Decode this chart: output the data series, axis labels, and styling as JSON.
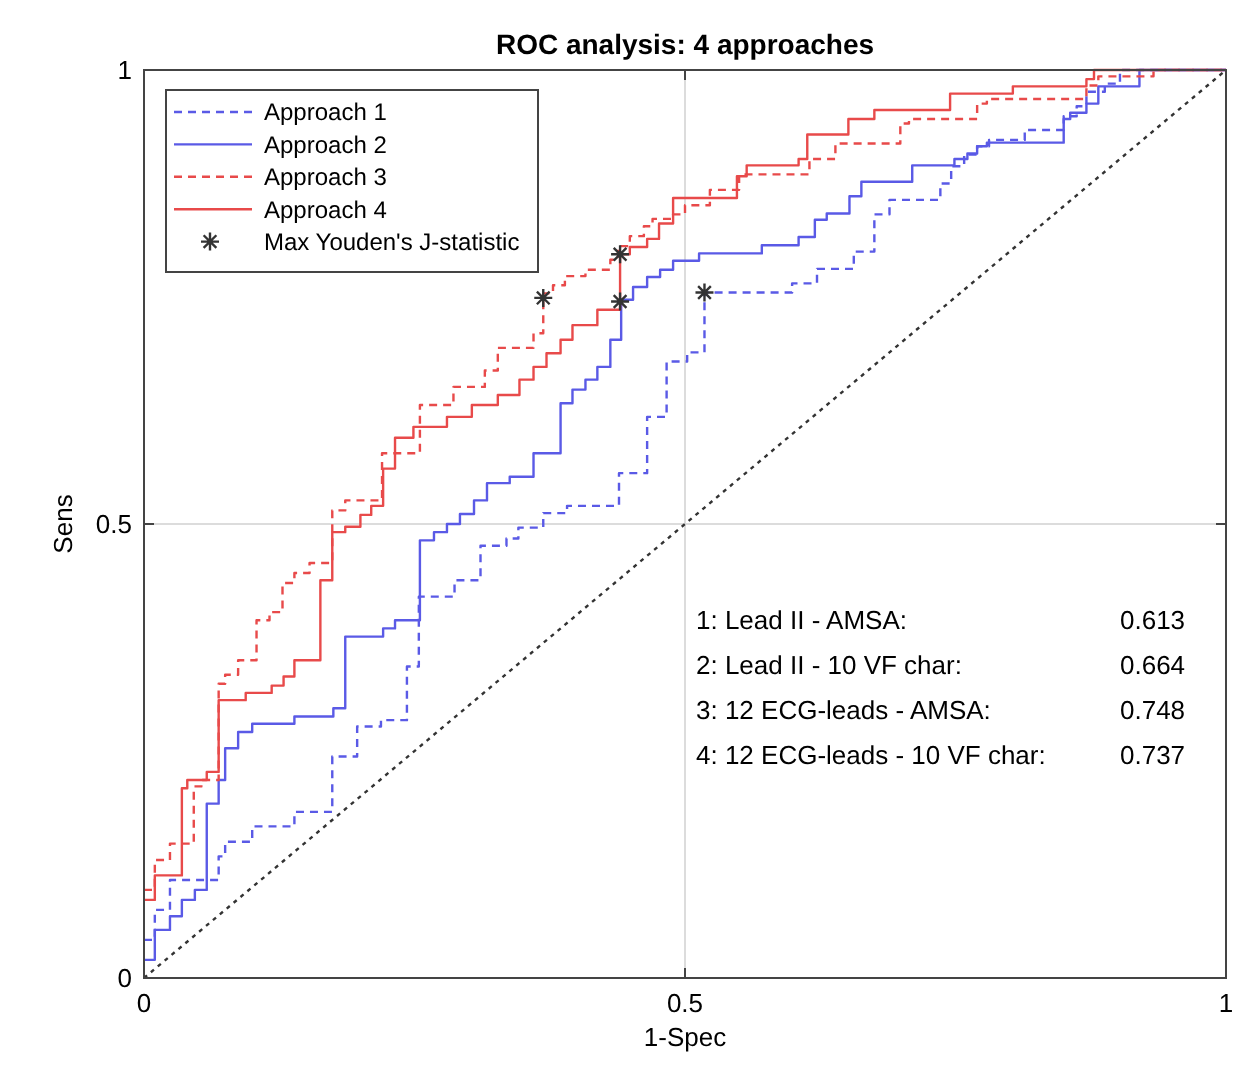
{
  "chart_data": {
    "type": "step",
    "title": "ROC analysis: 4 approaches",
    "xlabel": "1-Spec",
    "ylabel": "Sens",
    "xlim": [
      0,
      1
    ],
    "ylim": [
      0,
      1
    ],
    "xticks": [
      0,
      0.5,
      1
    ],
    "yticks": [
      0,
      0.5,
      1
    ],
    "grid": true,
    "legend": "top left",
    "series": [
      {
        "name": "Approach 1",
        "color": "#5a5ae6",
        "line_style": "dashed",
        "x": [
          0,
          0.01,
          0.024,
          0.069,
          0.075,
          0.1,
          0.139,
          0.174,
          0.197,
          0.219,
          0.243,
          0.254,
          0.287,
          0.311,
          0.335,
          0.346,
          0.369,
          0.391,
          0.439,
          0.465,
          0.483,
          0.502,
          0.518,
          0.599,
          0.622,
          0.656,
          0.675,
          0.689,
          0.736,
          0.746,
          0.758,
          0.77,
          0.781,
          0.814,
          0.85,
          0.862,
          0.871,
          0.888,
          0.902,
          1
        ],
        "values": [
          0.042,
          0.075,
          0.108,
          0.134,
          0.15,
          0.167,
          0.183,
          0.244,
          0.277,
          0.284,
          0.343,
          0.42,
          0.438,
          0.476,
          0.484,
          0.496,
          0.512,
          0.52,
          0.556,
          0.618,
          0.679,
          0.689,
          0.755,
          0.765,
          0.781,
          0.8,
          0.841,
          0.857,
          0.875,
          0.894,
          0.907,
          0.916,
          0.923,
          0.934,
          0.949,
          0.96,
          0.976,
          0.985,
          1,
          1
        ]
      },
      {
        "name": "Approach 2",
        "color": "#5a5ae6",
        "line_style": "solid",
        "x": [
          0,
          0.01,
          0.024,
          0.035,
          0.047,
          0.058,
          0.069,
          0.075,
          0.087,
          0.1,
          0.139,
          0.175,
          0.186,
          0.221,
          0.232,
          0.255,
          0.268,
          0.28,
          0.292,
          0.305,
          0.317,
          0.338,
          0.36,
          0.385,
          0.396,
          0.408,
          0.419,
          0.431,
          0.441,
          0.452,
          0.465,
          0.477,
          0.489,
          0.513,
          0.571,
          0.605,
          0.62,
          0.631,
          0.652,
          0.663,
          0.71,
          0.749,
          0.761,
          0.77,
          0.779,
          0.85,
          0.856,
          0.871,
          0.882,
          0.92,
          1
        ],
        "values": [
          0.02,
          0.053,
          0.068,
          0.086,
          0.097,
          0.192,
          0.218,
          0.253,
          0.271,
          0.28,
          0.288,
          0.297,
          0.376,
          0.385,
          0.394,
          0.482,
          0.491,
          0.5,
          0.511,
          0.526,
          0.545,
          0.552,
          0.578,
          0.633,
          0.648,
          0.659,
          0.673,
          0.703,
          0.747,
          0.761,
          0.772,
          0.78,
          0.79,
          0.798,
          0.807,
          0.816,
          0.835,
          0.842,
          0.861,
          0.877,
          0.895,
          0.902,
          0.908,
          0.916,
          0.92,
          0.946,
          0.953,
          0.963,
          0.982,
          1,
          1
        ]
      },
      {
        "name": "Approach 3",
        "color": "#e84a4a",
        "line_style": "dashed",
        "x": [
          0,
          0.01,
          0.024,
          0.046,
          0.053,
          0.069,
          0.075,
          0.087,
          0.104,
          0.116,
          0.128,
          0.139,
          0.153,
          0.174,
          0.186,
          0.22,
          0.255,
          0.286,
          0.315,
          0.327,
          0.36,
          0.369,
          0.378,
          0.389,
          0.408,
          0.431,
          0.438,
          0.449,
          0.462,
          0.47,
          0.489,
          0.5,
          0.523,
          0.55,
          0.615,
          0.639,
          0.699,
          0.707,
          0.77,
          0.779,
          0.871,
          0.882,
          0.933,
          1
        ],
        "values": [
          0.097,
          0.13,
          0.148,
          0.211,
          0.218,
          0.324,
          0.334,
          0.35,
          0.394,
          0.403,
          0.435,
          0.446,
          0.457,
          0.515,
          0.526,
          0.578,
          0.631,
          0.651,
          0.669,
          0.694,
          0.71,
          0.754,
          0.763,
          0.773,
          0.78,
          0.791,
          0.806,
          0.817,
          0.828,
          0.836,
          0.841,
          0.851,
          0.868,
          0.885,
          0.902,
          0.919,
          0.941,
          0.946,
          0.963,
          0.968,
          0.983,
          0.993,
          1,
          1
        ]
      },
      {
        "name": "Approach 4",
        "color": "#e84a4a",
        "line_style": "solid",
        "x": [
          0,
          0.01,
          0.035,
          0.04,
          0.058,
          0.069,
          0.094,
          0.118,
          0.129,
          0.139,
          0.163,
          0.174,
          0.186,
          0.2,
          0.21,
          0.221,
          0.232,
          0.249,
          0.28,
          0.303,
          0.327,
          0.347,
          0.36,
          0.372,
          0.385,
          0.396,
          0.419,
          0.44,
          0.449,
          0.465,
          0.476,
          0.489,
          0.548,
          0.557,
          0.605,
          0.613,
          0.651,
          0.675,
          0.745,
          0.803,
          0.871,
          0.878,
          1
        ],
        "values": [
          0.086,
          0.113,
          0.209,
          0.218,
          0.227,
          0.306,
          0.314,
          0.322,
          0.332,
          0.35,
          0.438,
          0.491,
          0.497,
          0.51,
          0.52,
          0.561,
          0.595,
          0.607,
          0.618,
          0.631,
          0.642,
          0.659,
          0.673,
          0.688,
          0.703,
          0.719,
          0.736,
          0.797,
          0.805,
          0.814,
          0.831,
          0.859,
          0.883,
          0.895,
          0.902,
          0.929,
          0.946,
          0.956,
          0.974,
          0.982,
          0.99,
          1,
          1
        ]
      },
      {
        "name": "Max Youden's J-statistic",
        "type": "scatter",
        "color": "#333333",
        "marker": "cross",
        "x": [
          0.518,
          0.44,
          0.369,
          0.44
        ],
        "values": [
          0.755,
          0.745,
          0.749,
          0.797
        ]
      },
      {
        "type": "line",
        "color": "#333333",
        "line_style": "dotted",
        "x": [
          0,
          1
        ],
        "values": [
          0,
          1
        ]
      }
    ],
    "annotations": [
      "1: Lead II - AMSA: 0.613",
      "2: Lead II - 10 VF char: 0.664",
      "3: 12 ECG-leads - AMSA: 0.748",
      "4: 12 ECG-leads - 10 VF char: 0.737"
    ]
  }
}
